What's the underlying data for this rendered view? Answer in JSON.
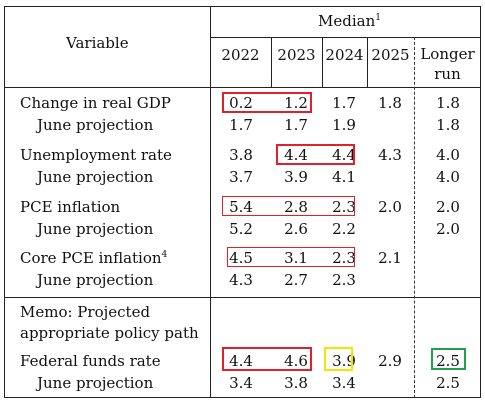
{
  "header": {
    "variable": "Variable",
    "median": "Median",
    "median_sup": "1",
    "years": [
      "2022",
      "2023",
      "2024",
      "2025"
    ],
    "longer_run": [
      "Longer",
      "run"
    ]
  },
  "rows": [
    {
      "label": "Change in real GDP",
      "sup": "",
      "values": [
        "0.2",
        "1.2",
        "1.7",
        "1.8",
        "1.8"
      ]
    },
    {
      "label": "June projection",
      "sup": "",
      "values": [
        "1.7",
        "1.7",
        "1.9",
        "",
        "1.8"
      ]
    },
    {
      "label": "Unemployment rate",
      "sup": "",
      "values": [
        "3.8",
        "4.4",
        "4.4",
        "4.3",
        "4.0"
      ]
    },
    {
      "label": "June projection",
      "sup": "",
      "values": [
        "3.7",
        "3.9",
        "4.1",
        "",
        "4.0"
      ]
    },
    {
      "label": "PCE inflation",
      "sup": "",
      "values": [
        "5.4",
        "2.8",
        "2.3",
        "2.0",
        "2.0"
      ]
    },
    {
      "label": "June projection",
      "sup": "",
      "values": [
        "5.2",
        "2.6",
        "2.2",
        "",
        "2.0"
      ]
    },
    {
      "label": "Core PCE inflation",
      "sup": "4",
      "values": [
        "4.5",
        "3.1",
        "2.3",
        "2.1",
        ""
      ]
    },
    {
      "label": "June projection",
      "sup": "",
      "values": [
        "4.3",
        "2.7",
        "2.3",
        "",
        ""
      ]
    },
    {
      "label": "Federal funds rate",
      "sup": "",
      "values": [
        "4.4",
        "4.6",
        "3.9",
        "2.9",
        "2.5"
      ]
    },
    {
      "label": "June projection",
      "sup": "",
      "values": [
        "3.4",
        "3.8",
        "3.4",
        "",
        "2.5"
      ]
    }
  ],
  "memo": [
    "Memo: Projected",
    "appropriate policy path"
  ],
  "highlight_colors": {
    "red": "#e0202a",
    "yellow": "#f5e400",
    "green": "#22a04a"
  }
}
